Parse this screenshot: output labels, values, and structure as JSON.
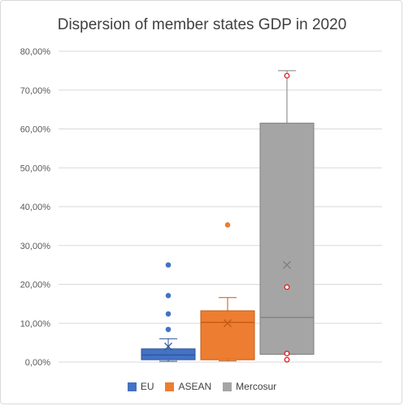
{
  "chart_data": {
    "type": "boxplot",
    "title": "Dispersion of member states GDP in 2020",
    "yticks": [
      "0,00%",
      "10,00%",
      "20,00%",
      "30,00%",
      "40,00%",
      "50,00%",
      "60,00%",
      "70,00%",
      "80,00%"
    ],
    "ylim": [
      0,
      80
    ],
    "grid": true,
    "legend_position": "bottom",
    "series": [
      {
        "name": "EU",
        "color": "#4472C4",
        "min": 0.2,
        "q1": 0.6,
        "median": 1.8,
        "q3": 3.4,
        "max": 6.0,
        "mean": 4.0,
        "outliers": [
          8.4,
          12.4,
          17.1,
          25.0
        ]
      },
      {
        "name": "ASEAN",
        "color": "#ED7D31",
        "min": 0.3,
        "q1": 0.6,
        "median": 10.2,
        "q3": 13.2,
        "max": 16.6,
        "mean": 10.0,
        "outliers": [
          35.3
        ]
      },
      {
        "name": "Mercosur",
        "color": "#A5A5A5",
        "min": 2.0,
        "q1": 2.0,
        "median": 11.5,
        "q3": 61.5,
        "max": 75.0,
        "mean": 25.0,
        "outliers": [
          0.6,
          2.2,
          19.3,
          73.7
        ]
      }
    ]
  }
}
